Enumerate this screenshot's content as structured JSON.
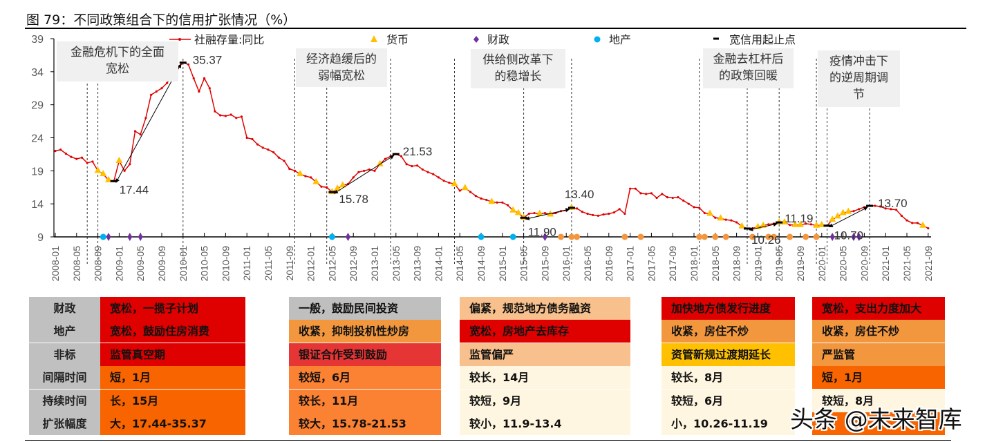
{
  "title": "图 79：不同政策组合下的信用扩张情况（%）",
  "chart_data": {
    "type": "line",
    "title": "图 79：不同政策组合下的信用扩张情况（%）",
    "xlabel": "",
    "ylabel": "",
    "ylim": [
      9,
      39
    ],
    "y_ticks": [
      "39",
      "34",
      "29",
      "24",
      "19",
      "14",
      "9"
    ],
    "grid": false,
    "legend_position": "top",
    "x_range": [
      "2008-01",
      "2021-09"
    ],
    "frequency": "monthly",
    "x_tick_labels": [
      "2008-01",
      "2008-05",
      "2008-09",
      "2009-01",
      "2009-05",
      "2009-09",
      "2010-01",
      "2010-05",
      "2010-09",
      "2011-01",
      "2011-05",
      "2011-09",
      "2012-01",
      "2012-05",
      "2012-09",
      "2013-01",
      "2013-05",
      "2013-09",
      "2014-01",
      "2014-05",
      "2014-09",
      "2015-01",
      "2015-05",
      "2015-09",
      "2016-01",
      "2016-05",
      "2016-09",
      "2017-01",
      "2017-05",
      "2017-09",
      "2018-01",
      "2018-05",
      "2018-09",
      "2019-01",
      "2019-05",
      "2019-09",
      "2020-01",
      "2020-05",
      "2020-09",
      "2021-01",
      "2021-05",
      "2021-09"
    ],
    "legend": {
      "series": "社融存量:同比",
      "money": "货币",
      "fiscal": "财政",
      "property": "地产",
      "wide_credit": "宽信用起止点"
    },
    "series": [
      {
        "name": "社融存量:同比",
        "color": "#e00000",
        "values": [
          22.0,
          22.2,
          21.6,
          21.1,
          20.8,
          21.0,
          20.2,
          20.4,
          19.0,
          18.5,
          17.6,
          17.44,
          20.5,
          19.0,
          20.0,
          25.0,
          24.5,
          27.0,
          30.5,
          31.0,
          31.5,
          32.3,
          33.5,
          34.5,
          35.37,
          35.1,
          33.0,
          31.0,
          33.0,
          31.5,
          28.0,
          27.4,
          27.3,
          27.5,
          27.0,
          27.2,
          24.0,
          23.8,
          23.0,
          22.5,
          22.2,
          21.8,
          21.0,
          20.5,
          19.3,
          19.0,
          18.5,
          18.2,
          18.0,
          17.3,
          16.6,
          16.5,
          15.78,
          16.3,
          16.8,
          17.0,
          18.0,
          18.8,
          19.0,
          19.2,
          19.0,
          20.0,
          20.8,
          21.2,
          21.53,
          21.2,
          20.0,
          19.7,
          19.8,
          19.2,
          18.8,
          18.5,
          18.0,
          17.5,
          17.2,
          17.0,
          16.0,
          16.4,
          15.8,
          15.2,
          14.8,
          14.6,
          14.3,
          14.2,
          14.2,
          13.8,
          13.0,
          12.6,
          11.9,
          12.5,
          12.6,
          12.5,
          12.6,
          12.4,
          12.6,
          12.9,
          13.0,
          13.4,
          13.3,
          12.8,
          12.5,
          12.3,
          12.2,
          12.4,
          12.5,
          12.7,
          13.2,
          12.5,
          16.3,
          16.3,
          15.6,
          15.5,
          15.6,
          14.9,
          15.5,
          15.0,
          14.9,
          15.0,
          14.5,
          14.0,
          13.5,
          13.4,
          12.6,
          12.5,
          11.9,
          11.8,
          11.6,
          11.5,
          11.2,
          10.6,
          10.26,
          10.3,
          10.5,
          10.7,
          10.9,
          11.0,
          11.19,
          11.2,
          10.8,
          10.8,
          10.8,
          11.0,
          10.9,
          10.7,
          10.8,
          10.7,
          11.6,
          12.1,
          12.6,
          12.8,
          12.9,
          13.2,
          13.5,
          13.7,
          13.7,
          13.6,
          13.3,
          13.2,
          13.1,
          12.2,
          11.5,
          11.1,
          11.1,
          10.7,
          10.3
        ]
      }
    ],
    "money_markers": {
      "color": "#ffc000",
      "dates": [
        "2008-09",
        "2008-10",
        "2008-11",
        "2009-01",
        "2011-11",
        "2012-02",
        "2012-05",
        "2012-06",
        "2012-07",
        "2013-02",
        "2014-04",
        "2014-06",
        "2014-11",
        "2015-03",
        "2015-04",
        "2015-05",
        "2015-08",
        "2015-10",
        "2016-02",
        "2018-04",
        "2018-06",
        "2018-10",
        "2019-01",
        "2019-02",
        "2019-05",
        "2019-06",
        "2019-08",
        "2019-09",
        "2019-12",
        "2020-01",
        "2020-03",
        "2020-04",
        "2020-05",
        "2020-06",
        "2021-08"
      ]
    },
    "fiscal_markers": {
      "color": "#7030a0",
      "dates": [
        "2008-11",
        "2009-03",
        "2009-05",
        "2012-08",
        "2015-09",
        "2020-03",
        "2020-07",
        "2020-08"
      ]
    },
    "property_markers": {
      "color": "#00b0f0",
      "dates": [
        "2008-10",
        "2012-05",
        "2014-09",
        "2015-03"
      ]
    },
    "property_tightening_markers": {
      "color": "#f4963e",
      "dates": [
        "2015-12",
        "2016-02",
        "2016-03",
        "2016-12",
        "2017-03",
        "2018-02",
        "2018-03",
        "2018-05",
        "2018-07",
        "2018-12",
        "2019-03",
        "2019-04",
        "2019-07",
        "2019-10",
        "2019-12"
      ]
    },
    "period_boundaries": [
      "2008-07",
      "2008-09",
      "2010-01",
      "2011-10",
      "2012-04",
      "2013-04",
      "2014-04",
      "2015-05",
      "2016-02",
      "2018-02",
      "2018-11",
      "2019-05",
      "2019-12",
      "2020-02",
      "2020-10"
    ],
    "wide_credit_points": [
      {
        "date": "2008-12",
        "label": "17.44"
      },
      {
        "date": "2010-01",
        "label": "35.37"
      },
      {
        "date": "2012-05",
        "label": "15.78"
      },
      {
        "date": "2013-05",
        "label": "21.53"
      },
      {
        "date": "2015-05",
        "label": "11.90"
      },
      {
        "date": "2016-02",
        "label": "13.40"
      },
      {
        "date": "2018-11",
        "label": "10.26"
      },
      {
        "date": "2019-05",
        "label": "11.19"
      },
      {
        "date": "2020-02",
        "label": "10.70"
      },
      {
        "date": "2020-10",
        "label": "13.70"
      }
    ],
    "annotations": [
      [
        "金融危机下的全面",
        "宽松"
      ],
      [
        "经济趋缓后的",
        "弱幅宽松"
      ],
      [
        "供给侧改革下",
        "的稳增长"
      ],
      [
        "金融去杠杆后",
        "的政策回暖"
      ],
      [
        "疫情冲击下",
        "的逆周期调",
        "节"
      ]
    ]
  },
  "table": {
    "row_labels": [
      "财政",
      "地产",
      "非标",
      "间隔时间",
      "持续时间",
      "扩张幅度"
    ],
    "columns": [
      {
        "cells": [
          {
            "text": "宽松，一揽子计划",
            "color": "#df0000"
          },
          {
            "text": "宽松，鼓励住房消费",
            "color": "#df0000"
          },
          {
            "text": "监管真空期",
            "color": "#df0000"
          },
          {
            "text": "短，1月",
            "color": "#f76400"
          },
          {
            "text": "长，15月",
            "color": "#f76400"
          },
          {
            "text": "大，17.44-35.37",
            "color": "#f76400"
          }
        ]
      },
      {
        "cells": [
          {
            "text": "一般，鼓励民间投资",
            "color": "#bfbfbf"
          },
          {
            "text": "收紧，抑制投机性炒房",
            "color": "#f2973e"
          },
          {
            "text": "银证合作受到鼓励",
            "color": "#e53535"
          },
          {
            "text": "较短，6月",
            "color": "#fb8133"
          },
          {
            "text": "较长，11月",
            "color": "#fb8133"
          },
          {
            "text": "较大，15.78-21.53",
            "color": "#fb8133"
          }
        ]
      },
      {
        "cells": [
          {
            "text": "偏紧，规范地方债务融资",
            "color": "#f7c08c"
          },
          {
            "text": "宽松，房地产去库存",
            "color": "#df0000"
          },
          {
            "text": "监管偏严",
            "color": "#f7c08c"
          },
          {
            "text": "较长，14月",
            "color": "#fff6e1"
          },
          {
            "text": "较短，9月",
            "color": "#fff6e1"
          },
          {
            "text": "较小，11.9-13.4",
            "color": "#fff6e1"
          }
        ]
      },
      {
        "cells": [
          {
            "text": "加快地方债发行进度",
            "color": "#df0000"
          },
          {
            "text": "收紧，房住不炒",
            "color": "#f2973e"
          },
          {
            "text": "资管新规过渡期延长",
            "color": "#ffc000"
          },
          {
            "text": "较长，8月",
            "color": "#fff6e1"
          },
          {
            "text": "较短，6月",
            "color": "#fff6e1"
          },
          {
            "text": "小，10.26-11.19",
            "color": "#fff6e1"
          }
        ]
      },
      {
        "cells": [
          {
            "text": "宽松，支出力度加大",
            "color": "#df0000"
          },
          {
            "text": "收紧，房住不炒",
            "color": "#f2973e"
          },
          {
            "text": "严监管",
            "color": "#f2973e"
          },
          {
            "text": "短，1月",
            "color": "#f76400"
          },
          {
            "text": "较短，8月",
            "color": "#fff6e1"
          },
          {
            "text": "",
            "color": "#f76400"
          }
        ]
      }
    ]
  },
  "watermark": "头条 @未来智库"
}
